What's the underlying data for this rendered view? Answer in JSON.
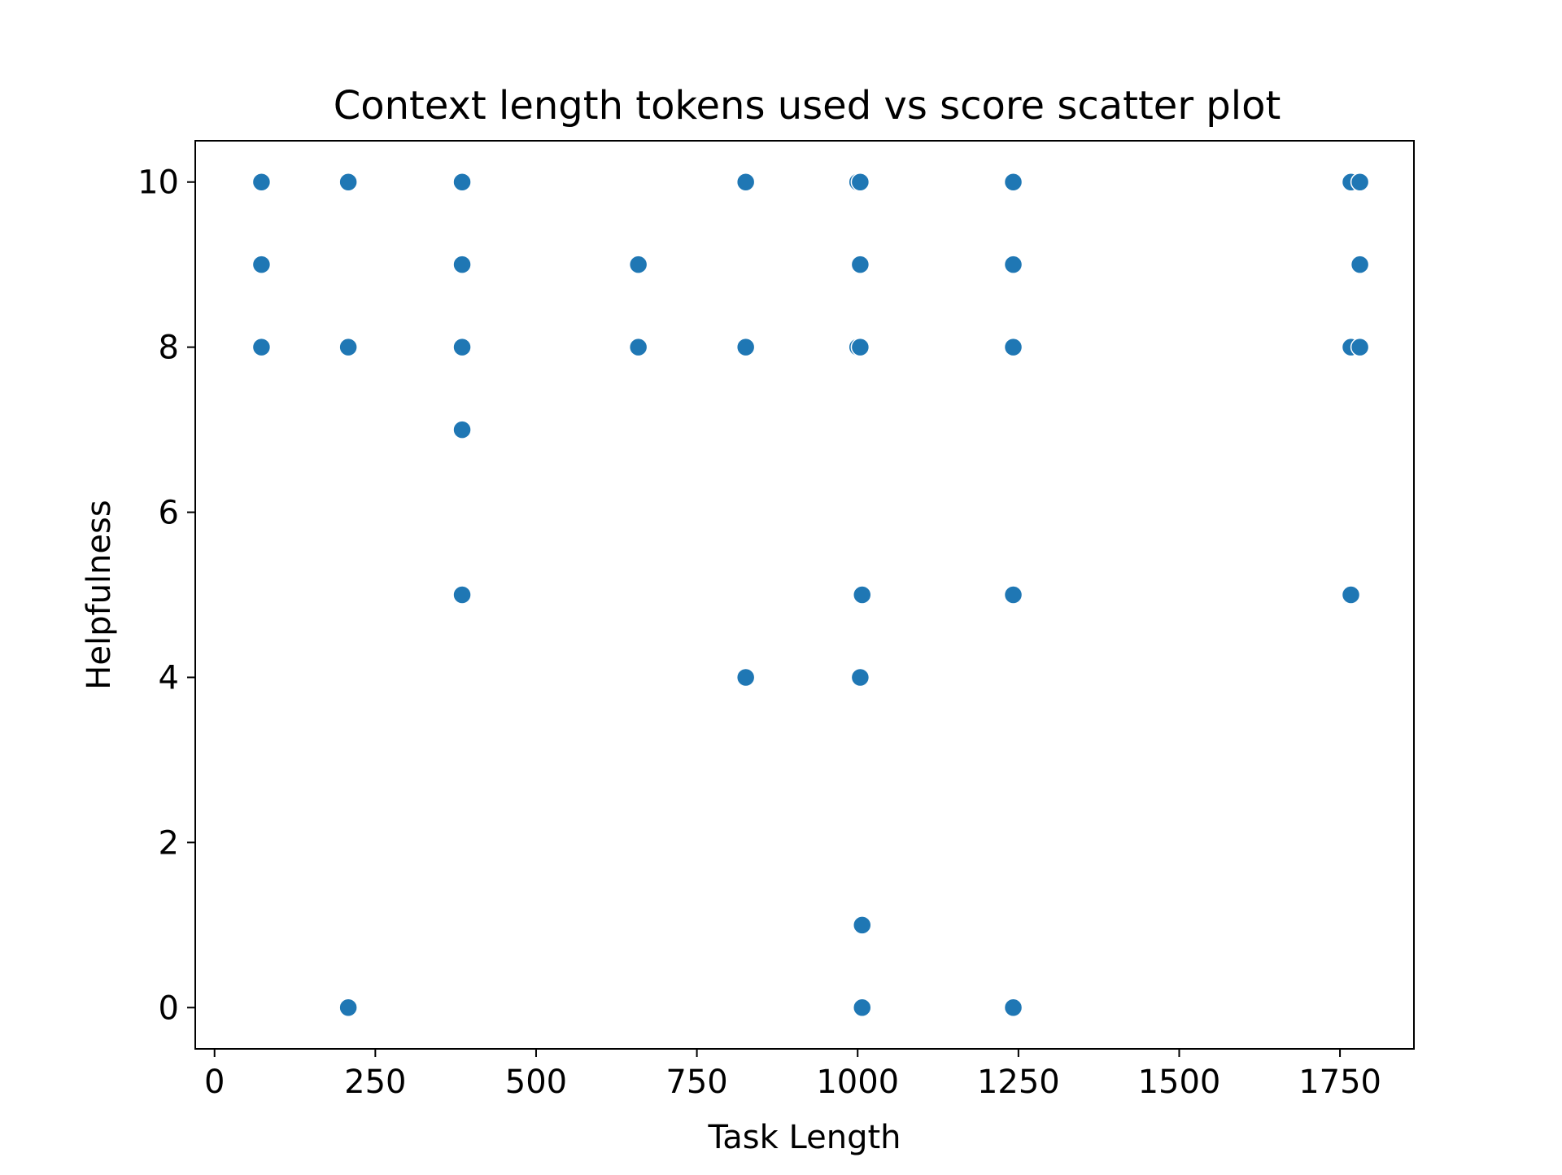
{
  "chart_data": {
    "type": "scatter",
    "title": "Context length tokens used vs score scatter plot",
    "xlabel": "Task Length",
    "ylabel": "Helpfulness",
    "xlim": [
      -30,
      1865
    ],
    "ylim": [
      -0.5,
      10.5
    ],
    "xticks": [
      0,
      250,
      500,
      750,
      1000,
      1250,
      1500,
      1750
    ],
    "yticks": [
      0,
      2,
      4,
      6,
      8,
      10
    ],
    "grid": false,
    "legend": "none",
    "point_color": "#1f77b4",
    "series": [
      {
        "points": [
          {
            "x": 73,
            "y": 10
          },
          {
            "x": 73,
            "y": 9
          },
          {
            "x": 73,
            "y": 8
          },
          {
            "x": 208,
            "y": 10
          },
          {
            "x": 208,
            "y": 8
          },
          {
            "x": 208,
            "y": 0
          },
          {
            "x": 385,
            "y": 10
          },
          {
            "x": 385,
            "y": 9
          },
          {
            "x": 385,
            "y": 8
          },
          {
            "x": 385,
            "y": 7
          },
          {
            "x": 385,
            "y": 5
          },
          {
            "x": 659,
            "y": 9
          },
          {
            "x": 659,
            "y": 8
          },
          {
            "x": 826,
            "y": 10
          },
          {
            "x": 826,
            "y": 8
          },
          {
            "x": 826,
            "y": 4
          },
          {
            "x": 1000,
            "y": 10
          },
          {
            "x": 1004,
            "y": 10
          },
          {
            "x": 1004,
            "y": 9
          },
          {
            "x": 1000,
            "y": 8
          },
          {
            "x": 1004,
            "y": 8
          },
          {
            "x": 1007,
            "y": 5
          },
          {
            "x": 1004,
            "y": 4
          },
          {
            "x": 1007,
            "y": 1
          },
          {
            "x": 1007,
            "y": 0
          },
          {
            "x": 1242,
            "y": 10
          },
          {
            "x": 1242,
            "y": 9
          },
          {
            "x": 1242,
            "y": 8
          },
          {
            "x": 1242,
            "y": 5
          },
          {
            "x": 1242,
            "y": 0
          },
          {
            "x": 1767,
            "y": 10
          },
          {
            "x": 1781,
            "y": 10
          },
          {
            "x": 1781,
            "y": 9
          },
          {
            "x": 1767,
            "y": 8
          },
          {
            "x": 1781,
            "y": 8
          },
          {
            "x": 1767,
            "y": 5
          }
        ]
      }
    ]
  }
}
